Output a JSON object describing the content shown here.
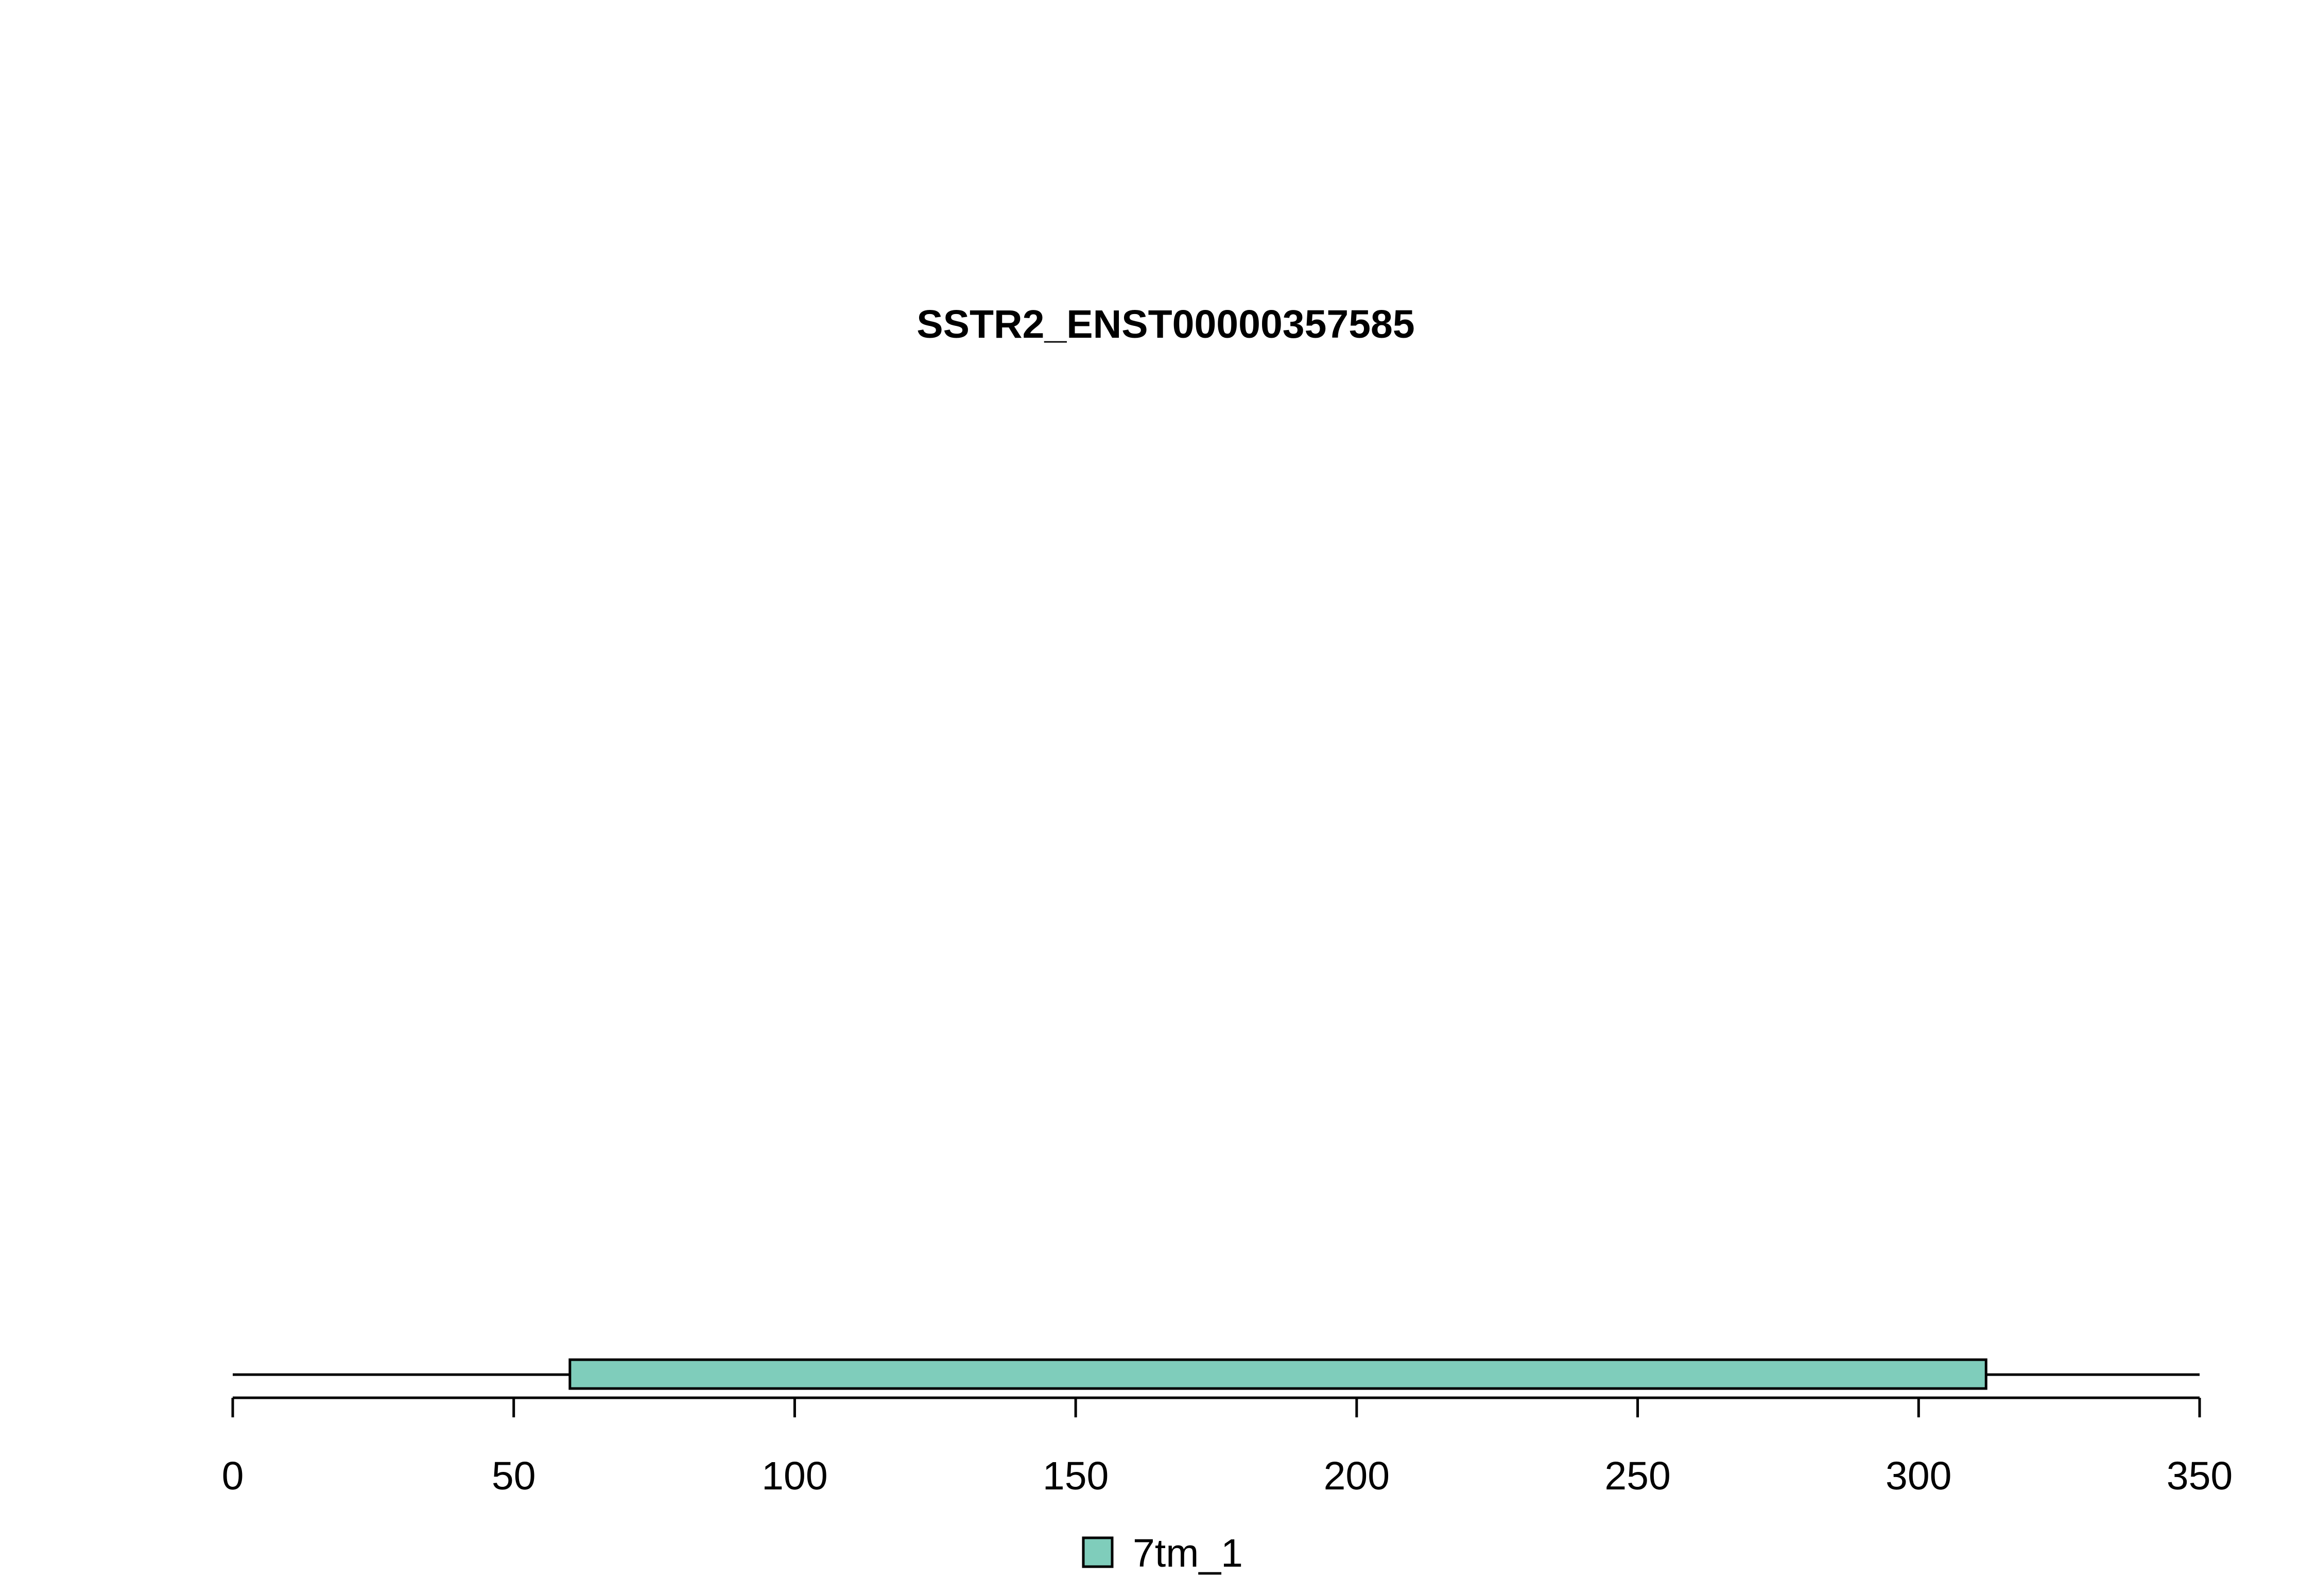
{
  "chart_data": {
    "type": "domain-track",
    "title": "SSTR2_ENST00000357585",
    "xlabel": "",
    "ylabel": "",
    "xlim": [
      0,
      350
    ],
    "protein_length": 350,
    "x_ticks": [
      0,
      50,
      100,
      150,
      200,
      250,
      300,
      350
    ],
    "x_tick_labels": [
      "0",
      "50",
      "100",
      "150",
      "200",
      "250",
      "300",
      "350"
    ],
    "domains": [
      {
        "name": "7tm_1",
        "start": 60,
        "end": 312,
        "color": "#7fcdbb"
      }
    ],
    "legend": {
      "placement": "bottom-center",
      "entries": [
        {
          "label": "7tm_1",
          "color": "#7fcdbb"
        }
      ]
    },
    "grid": false
  }
}
